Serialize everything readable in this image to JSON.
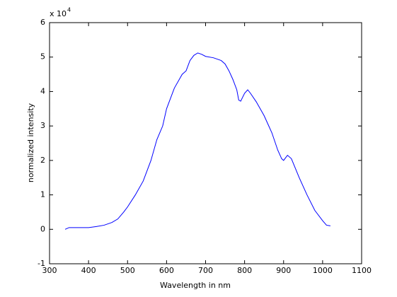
{
  "chart_data": {
    "type": "line",
    "xlabel": "Wavelength in nm",
    "ylabel": "normalized intensity",
    "y_scale_prefix": "x 10",
    "y_scale_exponent": "4",
    "x": [
      340,
      350,
      400,
      420,
      440,
      460,
      475,
      490,
      500,
      520,
      540,
      560,
      575,
      590,
      600,
      620,
      640,
      650,
      660,
      670,
      680,
      690,
      700,
      720,
      740,
      750,
      760,
      770,
      780,
      785,
      790,
      800,
      808,
      815,
      830,
      850,
      870,
      885,
      895,
      900,
      910,
      920,
      940,
      960,
      980,
      1000,
      1010,
      1020
    ],
    "series": [
      {
        "color": "#0000ff",
        "values": [
          0.0,
          0.05,
          0.05,
          0.08,
          0.12,
          0.2,
          0.3,
          0.5,
          0.65,
          1.0,
          1.4,
          2.0,
          2.6,
          3.0,
          3.5,
          4.1,
          4.5,
          4.6,
          4.9,
          5.05,
          5.12,
          5.08,
          5.02,
          4.98,
          4.9,
          4.8,
          4.6,
          4.35,
          4.05,
          3.75,
          3.72,
          3.95,
          4.05,
          3.95,
          3.7,
          3.3,
          2.8,
          2.3,
          2.05,
          2.0,
          2.15,
          2.05,
          1.5,
          1.0,
          0.55,
          0.25,
          0.12,
          0.1
        ]
      }
    ],
    "xlim": [
      300,
      1100
    ],
    "xticks": [
      300,
      400,
      500,
      600,
      700,
      800,
      900,
      1000,
      1100
    ],
    "ylim": [
      -1,
      6
    ],
    "yticks": [
      -1,
      0,
      1,
      2,
      3,
      4,
      5,
      6
    ]
  }
}
